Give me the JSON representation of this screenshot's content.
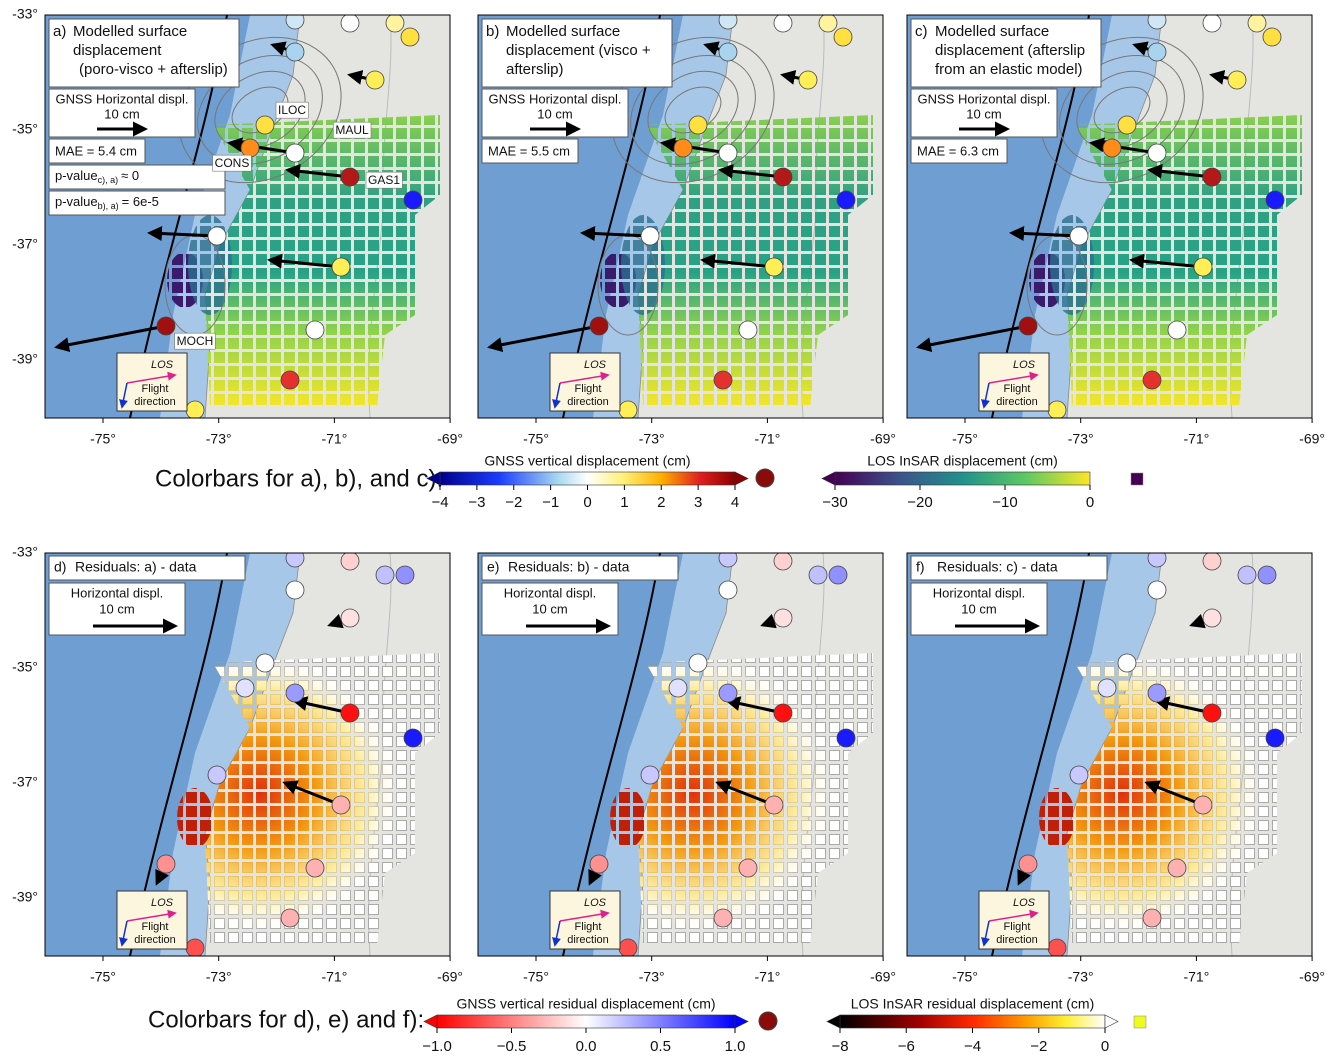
{
  "figure": {
    "top_panels": [
      {
        "label": "a)",
        "title_lines": [
          "Modelled surface",
          "displacement",
          "(poro-visco + afterslip)"
        ],
        "legend_title": "GNSS Horizontal displ.",
        "legend_scale": "10 cm",
        "mae": "MAE = 5.4 cm",
        "p_values": [
          {
            "prefix": "p-value",
            "sub": "c), a)",
            "suffix": "≈ 0"
          },
          {
            "prefix": "p-value",
            "sub": "b), a)",
            "suffix": "= 6e-5"
          }
        ],
        "stations": [
          "ILOC",
          "CONS",
          "MAUL",
          "GAS1",
          "MOCH"
        ]
      },
      {
        "label": "b)",
        "title_lines": [
          "Modelled surface",
          "displacement (visco +",
          "afterslip)"
        ],
        "legend_title": "GNSS Horizontal displ.",
        "legend_scale": "10 cm",
        "mae": "MAE = 5.5 cm"
      },
      {
        "label": "c)",
        "title_lines": [
          "Modelled surface",
          "displacement (afterslip",
          "from an elastic model)"
        ],
        "legend_title": "GNSS Horizontal displ.",
        "legend_scale": "10 cm",
        "mae": "MAE = 6.3 cm"
      }
    ],
    "bottom_panels": [
      {
        "label": "d)",
        "title": "Residuals: a) - data",
        "legend_title": "Horizontal displ.",
        "legend_scale": "10 cm"
      },
      {
        "label": "e)",
        "title": "Residuals: b) - data",
        "legend_title": "Horizontal displ.",
        "legend_scale": "10 cm"
      },
      {
        "label": "f)",
        "title": "Residuals: c) - data",
        "legend_title": "Horizontal displ.",
        "legend_scale": "10 cm"
      }
    ],
    "los_box": {
      "los": "LOS",
      "flight_lines": [
        "Flight",
        "direction"
      ]
    },
    "x_ticks": [
      "-75°",
      "-73°",
      "-71°",
      "-69°"
    ],
    "y_ticks": [
      "-33°",
      "-35°",
      "-37°",
      "-39°"
    ],
    "colorbar_rows": [
      {
        "caption": "Colorbars for a), b), and c):",
        "bars": [
          {
            "title": "GNSS vertical displacement (cm)",
            "ticks": [
              "−4",
              "−3",
              "−2",
              "−1",
              "0",
              "1",
              "2",
              "3",
              "4"
            ]
          },
          {
            "title": "LOS InSAR displacement (cm)",
            "ticks": [
              "−30",
              "−20",
              "−10",
              "0"
            ]
          }
        ]
      },
      {
        "caption": "Colorbars for d), e) and f):",
        "bars": [
          {
            "title": "GNSS vertical residual displacement (cm)",
            "ticks": [
              "−1.0",
              "−0.5",
              "0.0",
              "0.5",
              "1.0"
            ]
          },
          {
            "title": "LOS InSAR residual displacement (cm)",
            "ticks": [
              "−8",
              "−6",
              "−4",
              "−2",
              "0"
            ]
          }
        ]
      }
    ]
  }
}
